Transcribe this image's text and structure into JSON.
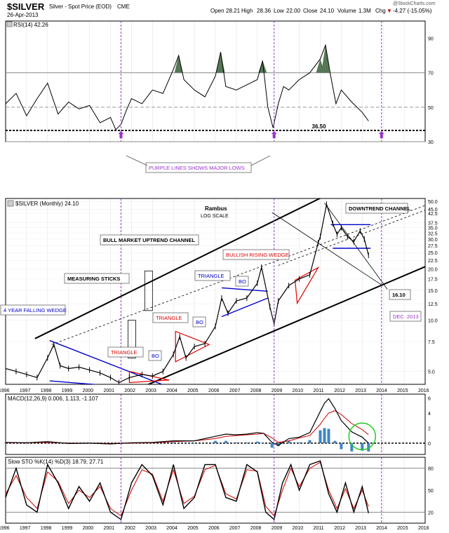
{
  "header": {
    "symbol": "$SILVER",
    "description": "Silver - Spot Price (EOD)",
    "exchange": "CME",
    "date": "26-Apr-2013",
    "open_label": "Open",
    "open": "28.21",
    "high_label": "High",
    "high": "28.36",
    "low_label": "Low",
    "low": "22.00",
    "close_label": "Close",
    "close": "24.10",
    "volume_label": "Volume",
    "volume": "1.3M",
    "chg_label": "Chg",
    "chg": "-4.27 (-15.05%)",
    "chg_arrow": "▼",
    "credit": "@StockCharts.com"
  },
  "colors": {
    "accent_purple": "#9933cc",
    "wedge_blue": "#0000cc",
    "triangle_red": "#dd0000",
    "rsi_fill": "#557755",
    "macd_hist": "#3d85c6",
    "signal_red": "#cc0000",
    "cycle_green": "#22cc22"
  },
  "chart_data": [
    {
      "type": "line",
      "panel": "rsi",
      "legend": "RSI(14) 42.26",
      "ylim": [
        30,
        100
      ],
      "yticks": [
        30,
        50,
        70,
        90
      ],
      "hlines": [
        70,
        50,
        30
      ],
      "support_level": 36.5,
      "support_label": "36.50",
      "x": [
        1996,
        1996.5,
        1997,
        1997.5,
        1998,
        1998.5,
        1999,
        1999.5,
        2000,
        2000.5,
        2001,
        2001.25,
        2001.5,
        2001.75,
        2002,
        2002.5,
        2003,
        2003.5,
        2004,
        2004.25,
        2004.5,
        2005,
        2005.5,
        2006,
        2006.25,
        2006.5,
        2007,
        2007.5,
        2008,
        2008.25,
        2008.5,
        2008.75,
        2009,
        2009.25,
        2009.5,
        2010,
        2010.5,
        2011,
        2011.25,
        2011.5,
        2011.75,
        2012,
        2012.5,
        2013,
        2013.3
      ],
      "values": [
        52,
        58,
        45,
        55,
        64,
        46,
        53,
        49,
        51,
        41,
        44,
        37,
        40,
        48,
        55,
        52,
        60,
        58,
        72,
        80,
        66,
        60,
        56,
        68,
        82,
        62,
        60,
        63,
        66,
        77,
        50,
        38,
        52,
        62,
        60,
        66,
        70,
        78,
        86,
        68,
        52,
        60,
        53,
        47,
        42
      ]
    },
    {
      "type": "line",
      "panel": "price",
      "legend": "$SILVER (Monthly) 24.10",
      "scale": "log",
      "ylim": [
        4.2,
        52
      ],
      "yticks": [
        5.0,
        7.5,
        10.0,
        12.5,
        15.0,
        17.5,
        20.0,
        22.5,
        25.0,
        27.5,
        30.0,
        32.5,
        35.0,
        37.5,
        42.5,
        45.0,
        50.0
      ],
      "xticks": [
        "1996",
        "1997",
        "1998",
        "1999",
        "2000",
        "2001",
        "2002",
        "2003",
        "2004",
        "2005",
        "2006",
        "2007",
        "2008",
        "2009",
        "2010",
        "2011",
        "2012",
        "2013",
        "2014",
        "2015",
        "2016"
      ],
      "x": [
        1996,
        1996.5,
        1997,
        1997.5,
        1998,
        1998.3,
        1998.6,
        1999,
        1999.5,
        2000,
        2000.5,
        2001,
        2001.4,
        2001.9,
        2002.5,
        2003,
        2003.5,
        2004,
        2004.3,
        2004.6,
        2005,
        2005.5,
        2006,
        2006.3,
        2006.6,
        2007,
        2007.5,
        2008,
        2008.2,
        2008.6,
        2008.8,
        2009,
        2009.5,
        2010,
        2010.5,
        2010.9,
        2011,
        2011.3,
        2011.6,
        2011.8,
        2012,
        2012.3,
        2012.6,
        2012.9,
        2013.1,
        2013.3
      ],
      "values": [
        5.2,
        5.0,
        4.8,
        4.6,
        6.0,
        7.2,
        5.4,
        5.2,
        5.3,
        5.1,
        4.9,
        4.6,
        4.3,
        4.6,
        4.8,
        4.7,
        5.0,
        6.3,
        8.0,
        6.0,
        7.0,
        7.3,
        9.2,
        13.5,
        11.0,
        13.0,
        13.5,
        16.5,
        20.5,
        12.0,
        9.5,
        13.0,
        16.0,
        17.5,
        18.5,
        28.5,
        31.0,
        48.0,
        37.0,
        32.0,
        35.0,
        31.0,
        29.0,
        33.5,
        30.0,
        24.1
      ],
      "title": "Rambus",
      "subtitle": "LOG SCALE",
      "annotations": [
        "PURPLE LINES SHOWS MAJOR LOWS",
        "BULL MARKET UPTREND CHANNEL",
        "MEASURING STICKS",
        "4 YEAR FALLING WEDGE",
        "TRIANGLE",
        "BO",
        "TRIANGLE",
        "BO",
        "TRIANGLE",
        "BO",
        "BULLISH RISING WEDGE",
        "DOWNTREND CHANNEL",
        "16.10",
        "DEC. 2013"
      ]
    },
    {
      "type": "line",
      "panel": "macd",
      "legend": "MACD(12,26,9) 0.006, 1.113, -1.107",
      "ylim": [
        -1.5,
        6.5
      ],
      "yticks": [
        0,
        2,
        4,
        6
      ],
      "x": [
        1996,
        1997,
        1998,
        1999,
        2000,
        2001,
        2002,
        2003,
        2004,
        2005,
        2006,
        2006.5,
        2007,
        2007.5,
        2008,
        2008.3,
        2008.7,
        2009,
        2009.5,
        2010,
        2010.5,
        2011,
        2011.2,
        2011.4,
        2011.7,
        2012,
        2012.5,
        2013,
        2013.3
      ],
      "macd": [
        0.1,
        0.05,
        0.2,
        -0.05,
        0,
        -0.1,
        0.05,
        0.1,
        0.3,
        0.3,
        0.9,
        1.2,
        1.1,
        1.2,
        1.4,
        1.3,
        0.1,
        -0.3,
        0.6,
        0.8,
        1.4,
        4.2,
        5.3,
        5.9,
        4.6,
        3.0,
        1.5,
        0.8,
        0.006
      ],
      "signal": [
        0.05,
        0.05,
        0.1,
        0,
        0,
        -0.05,
        0,
        0.05,
        0.2,
        0.3,
        0.6,
        0.9,
        1.0,
        1.1,
        1.2,
        1.3,
        0.7,
        0.1,
        0.3,
        0.7,
        1.0,
        2.5,
        3.3,
        4.0,
        4.3,
        3.8,
        2.6,
        1.8,
        1.113
      ]
    },
    {
      "type": "line",
      "panel": "stochastic",
      "legend": "Slow STO %K(14) %D(3) 18.79, 27.71",
      "ylim": [
        5,
        95
      ],
      "yticks": [
        20,
        50,
        80
      ],
      "hlines": [
        80,
        20
      ],
      "x": [
        1996,
        1996.5,
        1997,
        1997.5,
        1998,
        1998.5,
        1999,
        1999.5,
        2000,
        2000.5,
        2001,
        2001.5,
        2002,
        2002.5,
        2003,
        2003.5,
        2004,
        2004.5,
        2005,
        2005.5,
        2006,
        2006.5,
        2007,
        2007.5,
        2008,
        2008.4,
        2008.8,
        2009.2,
        2009.6,
        2010,
        2010.5,
        2011,
        2011.4,
        2011.8,
        2012.2,
        2012.6,
        2013,
        2013.3
      ],
      "k": [
        40,
        80,
        30,
        20,
        85,
        60,
        25,
        55,
        35,
        60,
        20,
        10,
        60,
        85,
        70,
        30,
        85,
        25,
        40,
        85,
        85,
        40,
        35,
        85,
        75,
        20,
        10,
        60,
        85,
        50,
        85,
        90,
        45,
        20,
        60,
        20,
        55,
        18.79
      ],
      "d": [
        45,
        70,
        40,
        25,
        75,
        62,
        32,
        50,
        40,
        55,
        25,
        15,
        50,
        78,
        72,
        35,
        78,
        32,
        42,
        78,
        84,
        45,
        38,
        78,
        76,
        28,
        15,
        50,
        80,
        55,
        80,
        88,
        50,
        25,
        52,
        25,
        50,
        27.71
      ]
    }
  ]
}
